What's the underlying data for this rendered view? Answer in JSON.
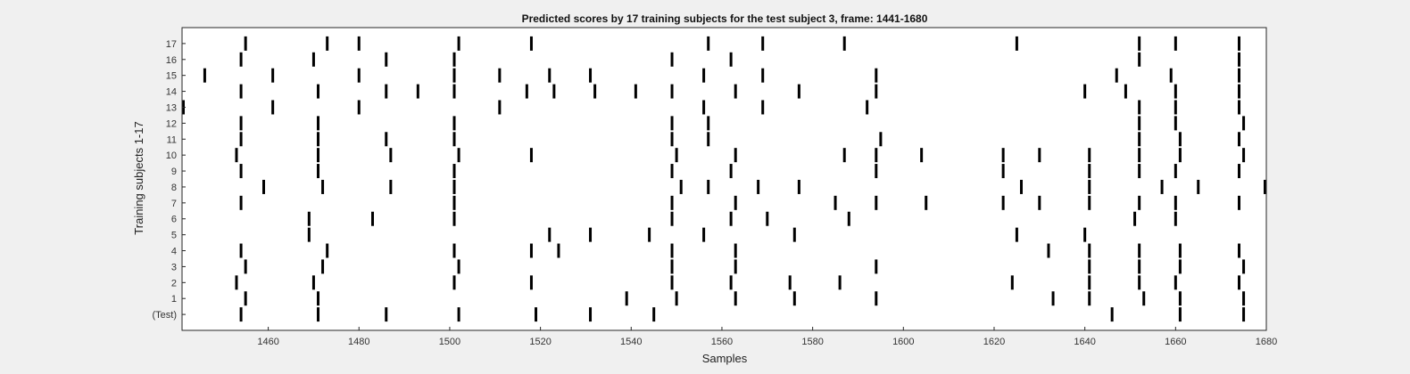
{
  "chart_data": {
    "type": "scatter",
    "title": "Predicted scores by 17 training subjects for the test subject 3, frame: 1441-1680",
    "xlabel": "Samples",
    "ylabel": "Training subjects 1-17",
    "xlim": [
      1441,
      1680
    ],
    "x_ticks": [
      1460,
      1480,
      1500,
      1520,
      1540,
      1560,
      1580,
      1600,
      1620,
      1640,
      1660,
      1680
    ],
    "x_tick_labels": [
      "1460",
      "1480",
      "1500",
      "1520",
      "1540",
      "1560",
      "1580",
      "1600",
      "1620",
      "1640",
      "1660",
      "1680"
    ],
    "y_tick_labels": [
      "(Test)",
      "1",
      "2",
      "3",
      "4",
      "5",
      "6",
      "7",
      "8",
      "9",
      "10",
      "11",
      "12",
      "13",
      "14",
      "15",
      "16",
      "17"
    ],
    "grid": false,
    "mark_color": "#000000",
    "plot_background": "#ffffff",
    "figure_background": "#f0f0f0",
    "rows": [
      {
        "label": "(Test)",
        "x": [
          1454,
          1471,
          1486,
          1502,
          1519,
          1531,
          1545,
          1646,
          1661,
          1675
        ]
      },
      {
        "label": "1",
        "x": [
          1455,
          1471,
          1539,
          1550,
          1563,
          1576,
          1594,
          1633,
          1641,
          1653,
          1661,
          1675
        ]
      },
      {
        "label": "2",
        "x": [
          1453,
          1470,
          1501,
          1518,
          1549,
          1562,
          1575,
          1586,
          1624,
          1641,
          1652,
          1660,
          1674
        ]
      },
      {
        "label": "3",
        "x": [
          1455,
          1472,
          1502,
          1549,
          1563,
          1594,
          1641,
          1652,
          1661,
          1675
        ]
      },
      {
        "label": "4",
        "x": [
          1454,
          1473,
          1501,
          1518,
          1524,
          1549,
          1563,
          1632,
          1641,
          1652,
          1661,
          1674
        ]
      },
      {
        "label": "5",
        "x": [
          1469,
          1522,
          1531,
          1544,
          1556,
          1576,
          1625,
          1640
        ]
      },
      {
        "label": "6",
        "x": [
          1469,
          1483,
          1501,
          1549,
          1562,
          1570,
          1588,
          1651,
          1660
        ]
      },
      {
        "label": "7",
        "x": [
          1454,
          1501,
          1549,
          1563,
          1585,
          1594,
          1605,
          1622,
          1630,
          1641,
          1652,
          1660,
          1674
        ]
      },
      {
        "label": "8",
        "x": [
          1459,
          1472,
          1487,
          1501,
          1551,
          1557,
          1568,
          1577,
          1626,
          1641,
          1657,
          1665,
          1680
        ]
      },
      {
        "label": "9",
        "x": [
          1454,
          1471,
          1501,
          1549,
          1562,
          1594,
          1622,
          1641,
          1652,
          1660,
          1674
        ]
      },
      {
        "label": "10",
        "x": [
          1453,
          1471,
          1487,
          1502,
          1518,
          1550,
          1563,
          1587,
          1594,
          1604,
          1622,
          1630,
          1641,
          1652,
          1661,
          1675
        ]
      },
      {
        "label": "11",
        "x": [
          1454,
          1471,
          1486,
          1501,
          1549,
          1557,
          1595,
          1652,
          1661,
          1674
        ]
      },
      {
        "label": "12",
        "x": [
          1454,
          1471,
          1501,
          1549,
          1557,
          1652,
          1660,
          1675
        ]
      },
      {
        "label": "13",
        "x": [
          1441,
          1461,
          1480,
          1511,
          1556,
          1569,
          1592,
          1652,
          1660,
          1674
        ]
      },
      {
        "label": "14",
        "x": [
          1454,
          1471,
          1486,
          1493,
          1501,
          1517,
          1523,
          1532,
          1541,
          1549,
          1563,
          1577,
          1594,
          1640,
          1649,
          1660,
          1674
        ]
      },
      {
        "label": "15",
        "x": [
          1446,
          1461,
          1480,
          1501,
          1511,
          1522,
          1531,
          1556,
          1569,
          1594,
          1647,
          1659,
          1674
        ]
      },
      {
        "label": "16",
        "x": [
          1454,
          1470,
          1486,
          1501,
          1549,
          1562,
          1652,
          1674
        ]
      },
      {
        "label": "17",
        "x": [
          1455,
          1473,
          1480,
          1502,
          1518,
          1557,
          1569,
          1587,
          1625,
          1652,
          1660,
          1674
        ]
      }
    ]
  }
}
